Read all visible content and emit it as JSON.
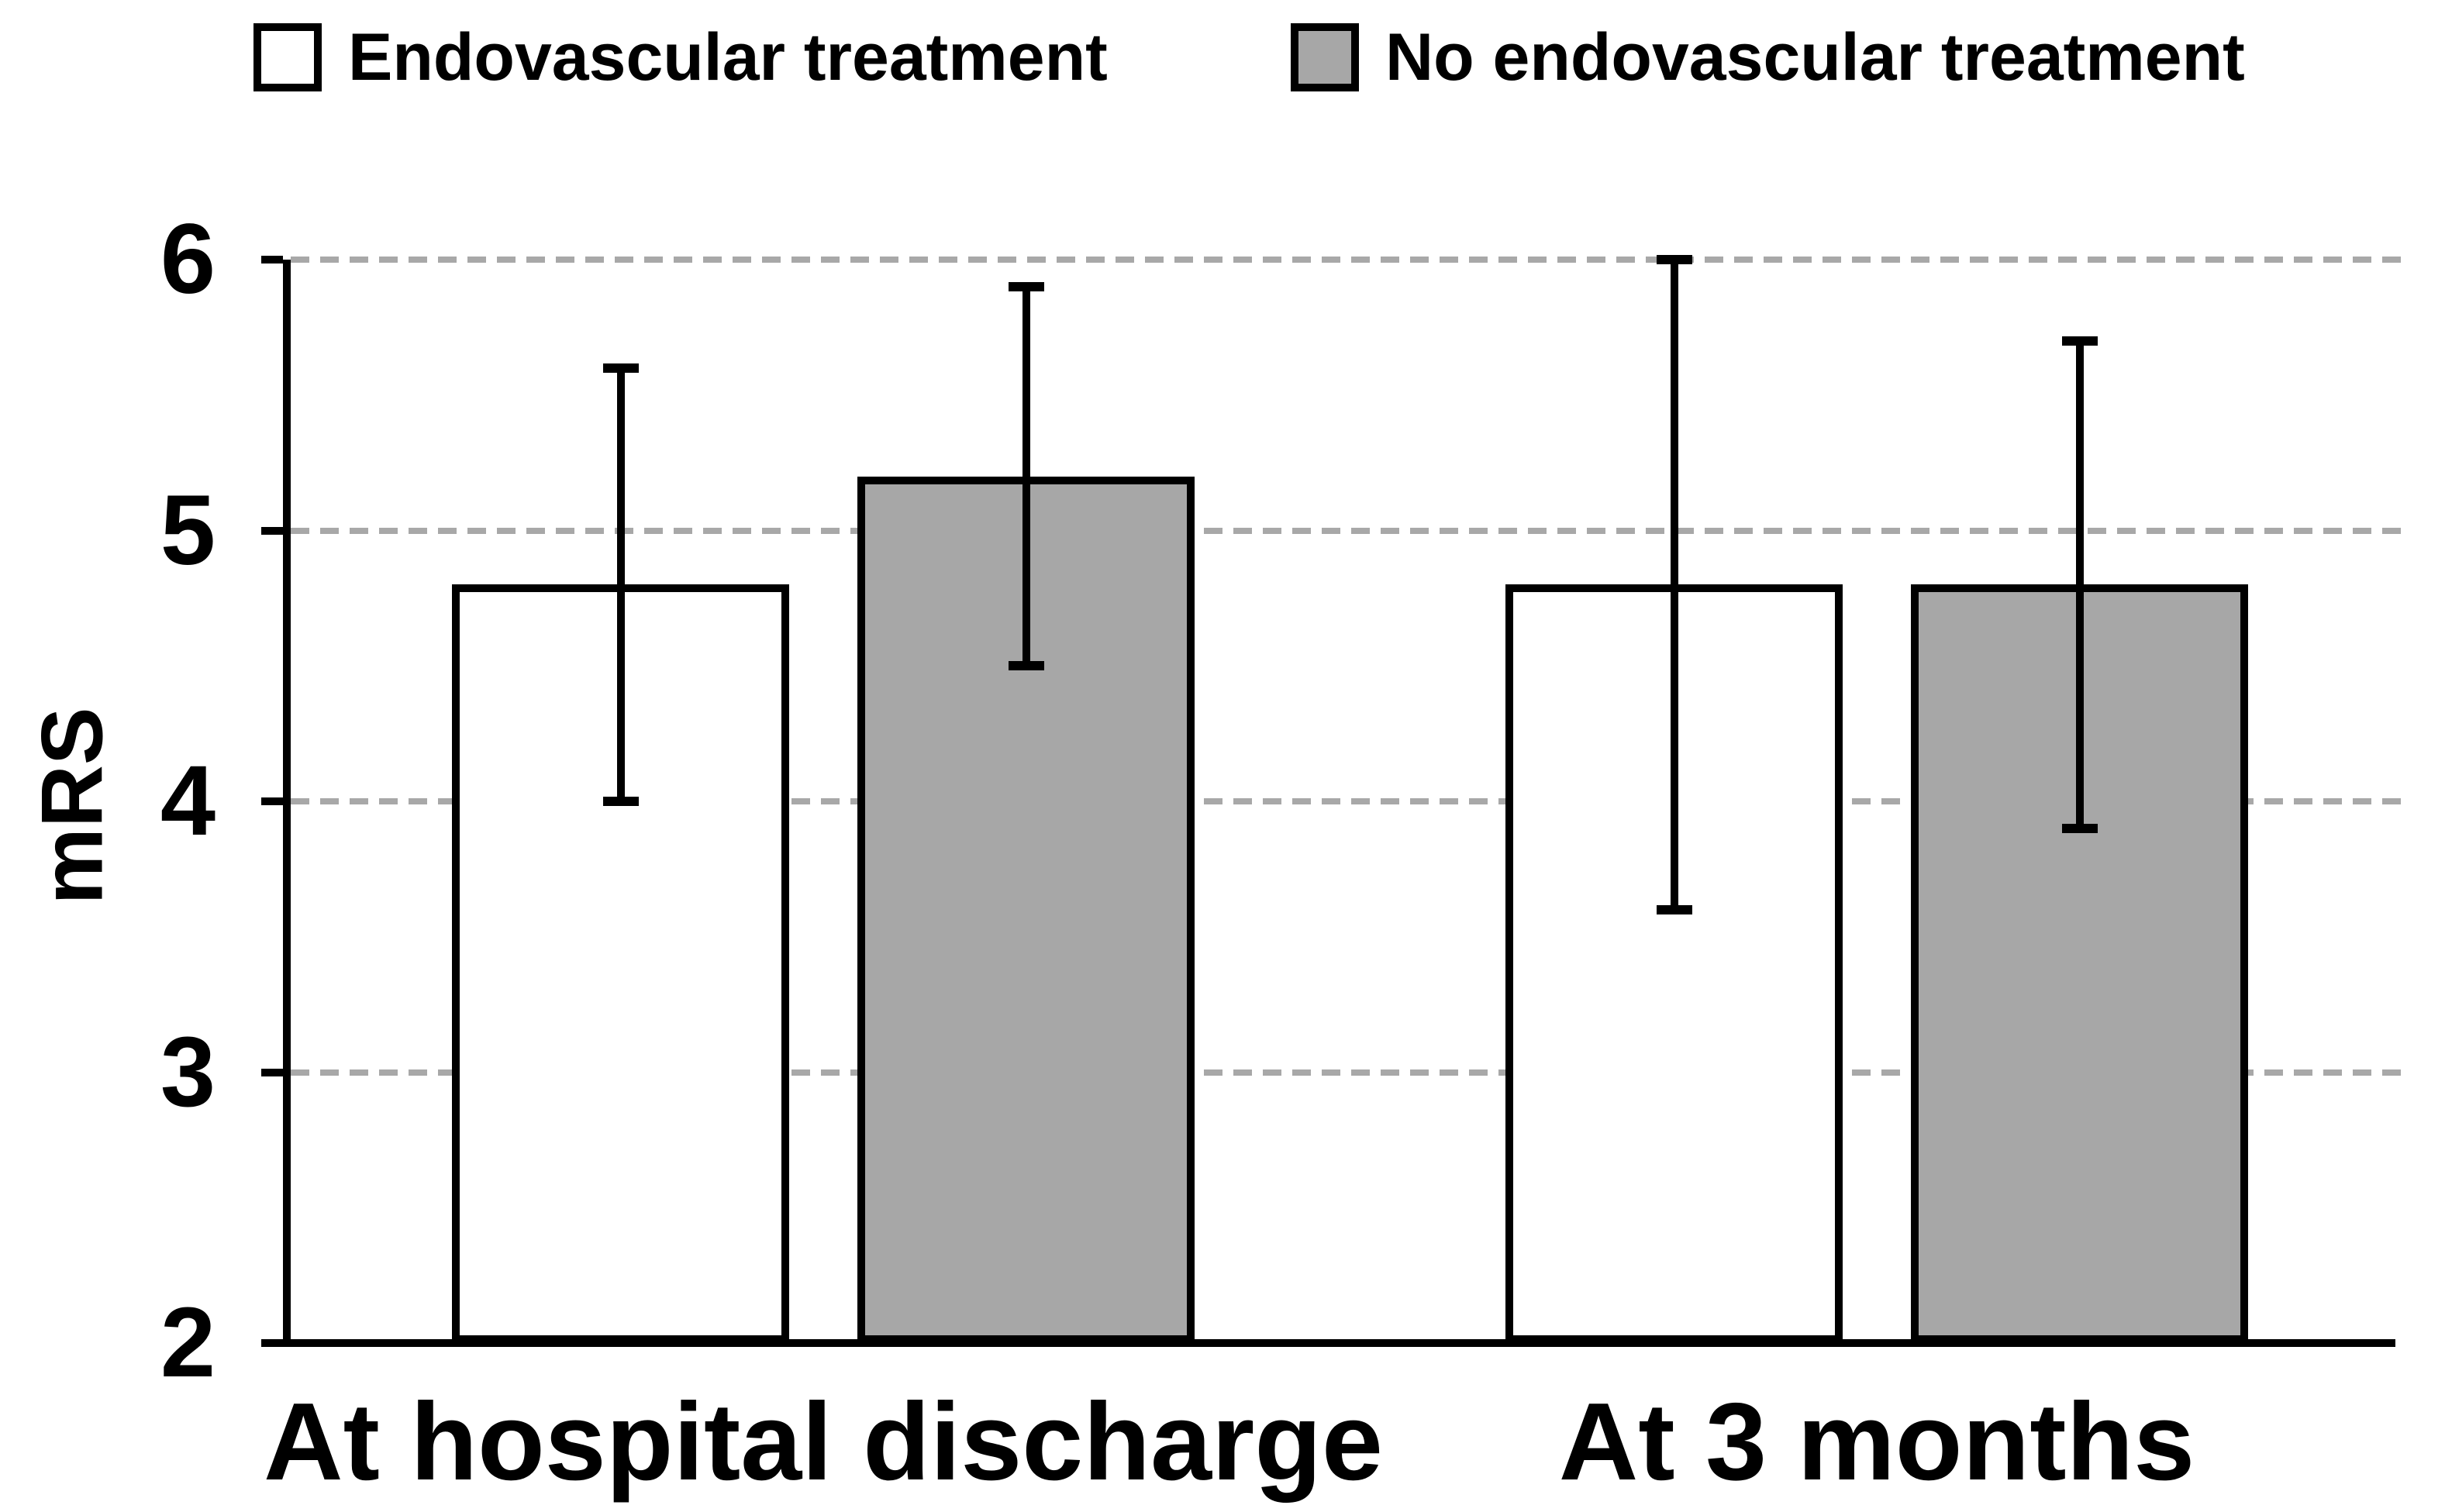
{
  "legend": {
    "items": [
      {
        "label": "Endovascular treatment",
        "fill": "#ffffff"
      },
      {
        "label": "No endovascular treatment",
        "fill": "#a7a7a7"
      }
    ]
  },
  "chart_data": {
    "type": "bar",
    "title": "",
    "xlabel": "",
    "ylabel": "mRS",
    "ylim": [
      2,
      6
    ],
    "yticks": [
      2,
      3,
      4,
      5,
      6
    ],
    "grid": "horizontal dashed gridlines at 3, 4, 5, 6",
    "legend_position": "top",
    "categories": [
      "At hospital discharge",
      "At 3 months"
    ],
    "series": [
      {
        "name": "Endovascular treatment",
        "fill": "#ffffff",
        "values": [
          4.8,
          4.8
        ],
        "error_low": [
          4.0,
          3.6
        ],
        "error_high": [
          5.6,
          6.0
        ]
      },
      {
        "name": "No endovascular treatment",
        "fill": "#a7a7a7",
        "values": [
          5.2,
          4.8
        ],
        "error_low": [
          4.5,
          3.9
        ],
        "error_high": [
          5.9,
          5.7
        ]
      }
    ],
    "colors": {
      "bar_border": "#000000",
      "error_bar": "#000000",
      "gridline": "#a8a8a8",
      "axis": "#000000"
    }
  }
}
